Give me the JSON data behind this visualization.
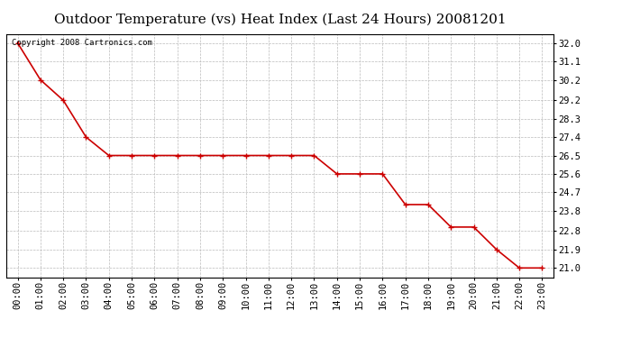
{
  "title": "Outdoor Temperature (vs) Heat Index (Last 24 Hours) 20081201",
  "copyright_text": "Copyright 2008 Cartronics.com",
  "x_labels": [
    "00:00",
    "01:00",
    "02:00",
    "03:00",
    "04:00",
    "05:00",
    "06:00",
    "07:00",
    "08:00",
    "09:00",
    "10:00",
    "11:00",
    "12:00",
    "13:00",
    "14:00",
    "15:00",
    "16:00",
    "17:00",
    "18:00",
    "19:00",
    "20:00",
    "21:00",
    "22:00",
    "23:00"
  ],
  "y_values": [
    32.0,
    30.2,
    29.2,
    27.4,
    26.5,
    26.5,
    26.5,
    26.5,
    26.5,
    26.5,
    26.5,
    26.5,
    26.5,
    26.5,
    25.6,
    25.6,
    25.6,
    24.1,
    24.1,
    23.0,
    23.0,
    21.9,
    21.0,
    21.0
  ],
  "y_ticks": [
    21.0,
    21.9,
    22.8,
    23.8,
    24.7,
    25.6,
    26.5,
    27.4,
    28.3,
    29.2,
    30.2,
    31.1,
    32.0
  ],
  "ylim": [
    20.55,
    32.45
  ],
  "line_color": "#cc0000",
  "marker": "s",
  "marker_color": "#cc0000",
  "marker_size": 3,
  "background_color": "#ffffff",
  "plot_bg_color": "#ffffff",
  "grid_color": "#bbbbbb",
  "title_fontsize": 11,
  "tick_fontsize": 7.5,
  "copyright_fontsize": 6.5
}
